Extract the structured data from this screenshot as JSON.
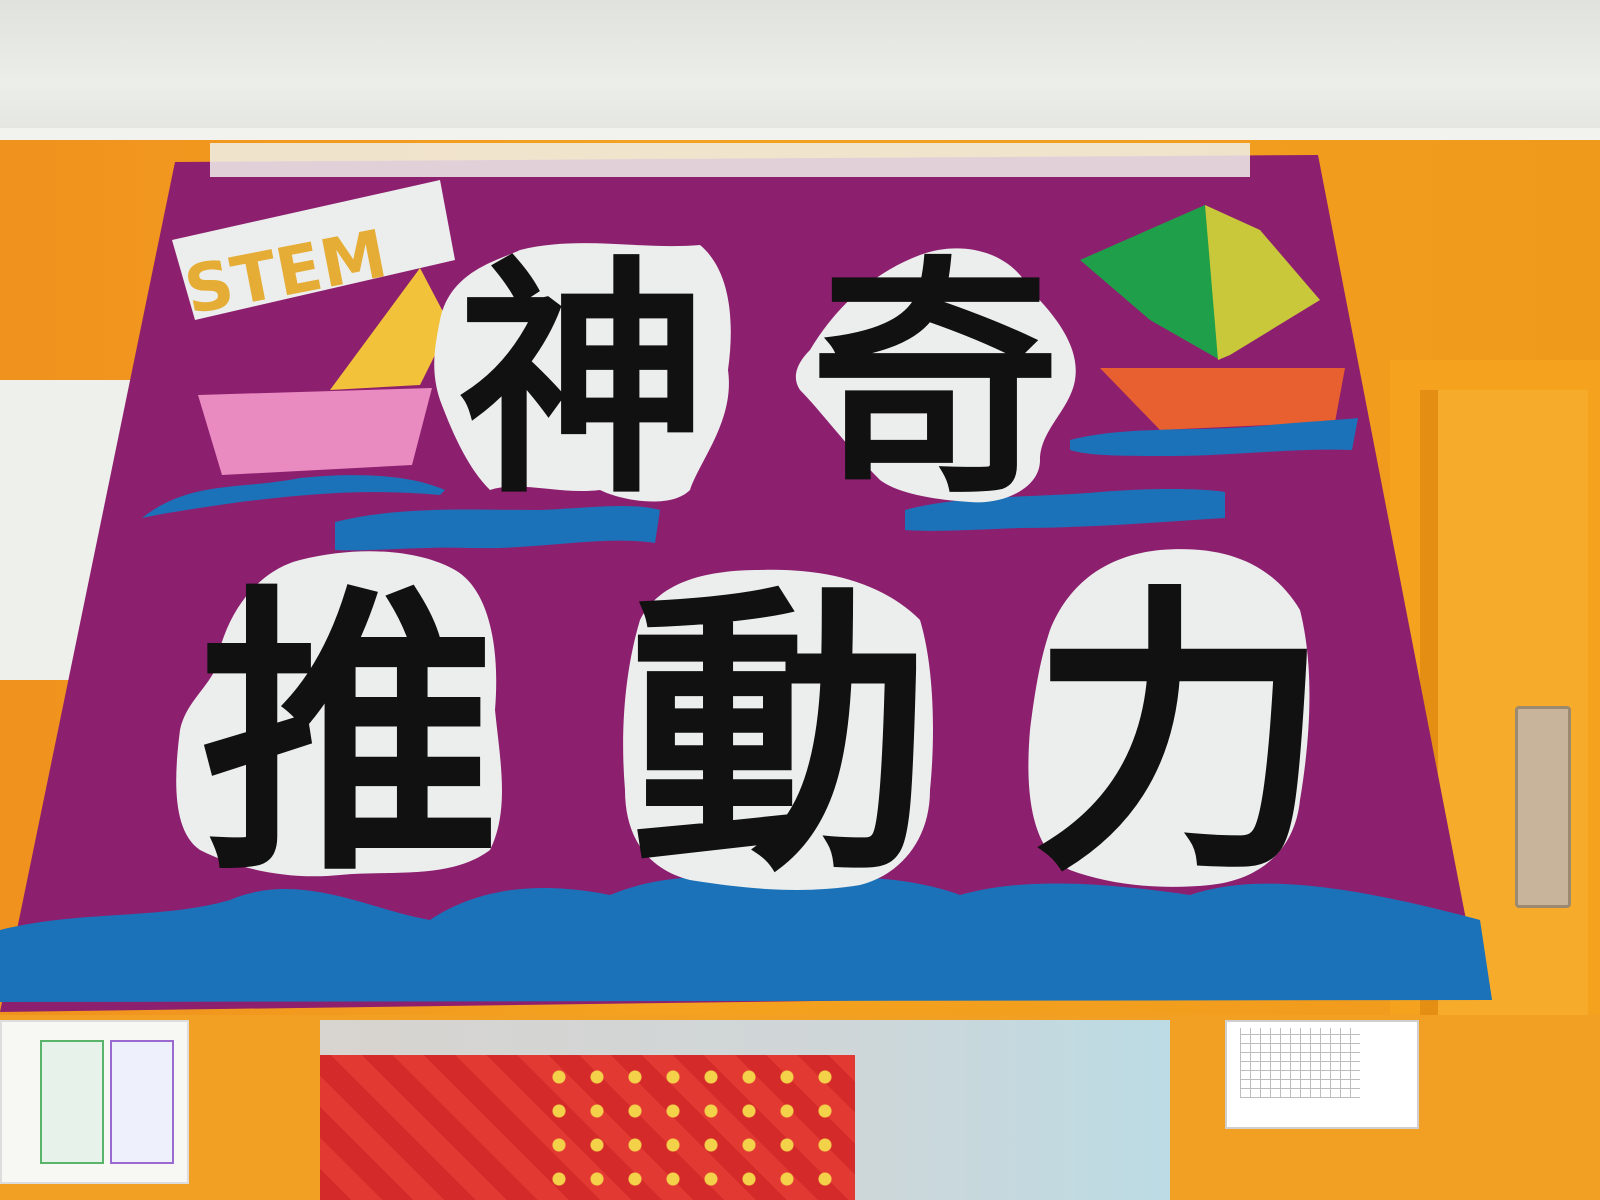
{
  "sign": {
    "badge_text": "STEM",
    "title_line1": [
      "神",
      "奇"
    ],
    "title_line2": [
      "推",
      "動",
      "力"
    ]
  },
  "colors": {
    "banner": "#8d1f6f",
    "wave": "#1b72b8",
    "wall": "#f39a1f",
    "badge_text": "#e6ad36",
    "boat_left_hull": "#e98ac0",
    "boat_left_sail": "#f1c23a",
    "boat_right_hull": "#e8602f",
    "boat_right_sail_a": "#1f9f49",
    "boat_right_sail_b": "#c8c83a"
  }
}
